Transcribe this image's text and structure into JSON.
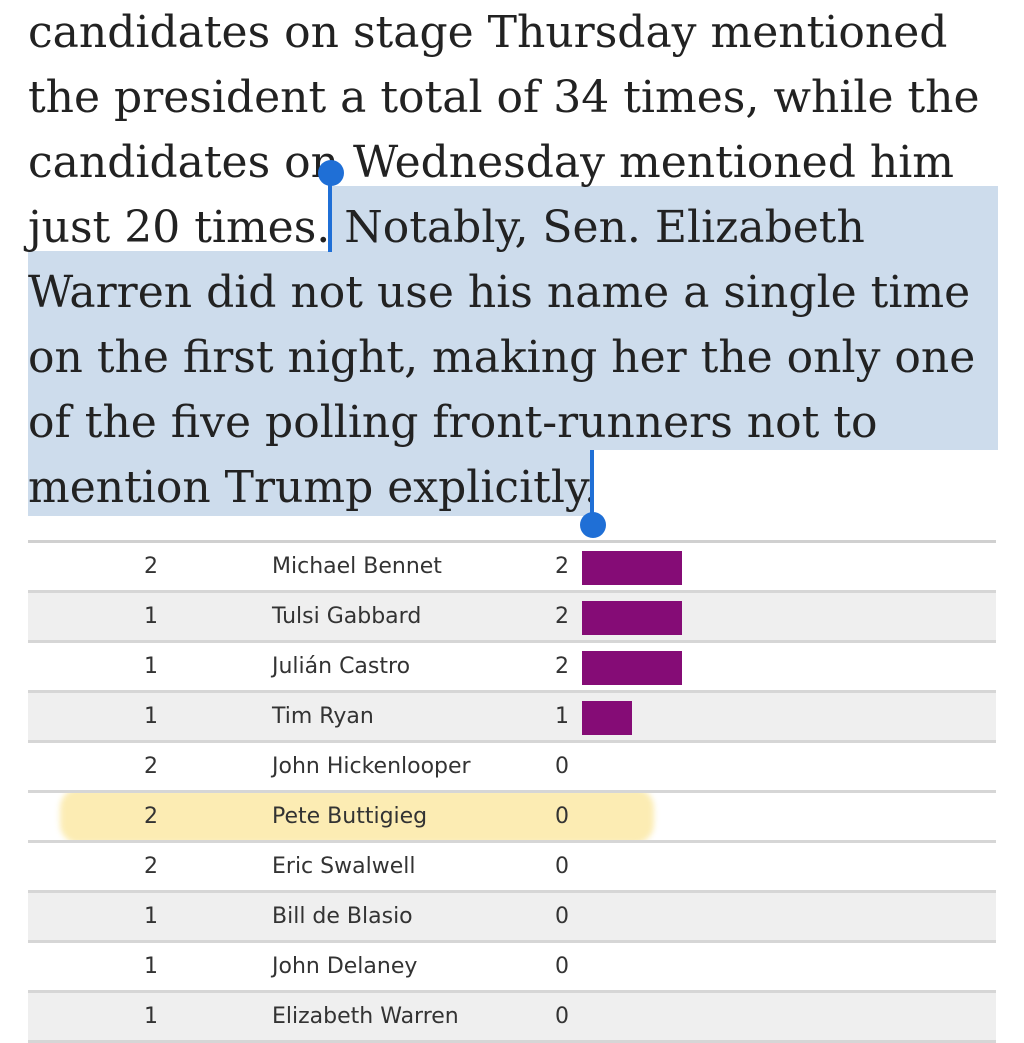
{
  "article": {
    "lines": [
      "candidates on stage Thursday mentioned",
      "the president a total of 34 times, while the",
      "candidates on Wednesday mentioned him",
      "just 20 times. ",
      "Notably, Sen. Elizabeth",
      "Warren did not use his name a single time",
      "on the first night, making her the only one",
      "of the five polling front-runners not to",
      "mention Trump explicitly."
    ]
  },
  "table": {
    "rows": [
      {
        "night": "2",
        "name": "Michael Bennet",
        "mentions": "2",
        "value": 2
      },
      {
        "night": "1",
        "name": "Tulsi Gabbard",
        "mentions": "2",
        "value": 2
      },
      {
        "night": "1",
        "name": "Julián Castro",
        "mentions": "2",
        "value": 2
      },
      {
        "night": "1",
        "name": "Tim Ryan",
        "mentions": "1",
        "value": 1
      },
      {
        "night": "2",
        "name": "John Hickenlooper",
        "mentions": "0",
        "value": 0
      },
      {
        "night": "2",
        "name": "Pete Buttigieg",
        "mentions": "0",
        "value": 0,
        "highlighted": true
      },
      {
        "night": "2",
        "name": "Eric Swalwell",
        "mentions": "0",
        "value": 0
      },
      {
        "night": "1",
        "name": "Bill de Blasio",
        "mentions": "0",
        "value": 0
      },
      {
        "night": "1",
        "name": "John Delaney",
        "mentions": "0",
        "value": 0
      },
      {
        "night": "1",
        "name": "Elizabeth Warren",
        "mentions": "0",
        "value": 0
      }
    ],
    "bar_color": "#850c76",
    "highlight_color": "#fbe69a"
  },
  "selection": {
    "color": "#cddcec",
    "handle_color": "#1f6fd6"
  }
}
